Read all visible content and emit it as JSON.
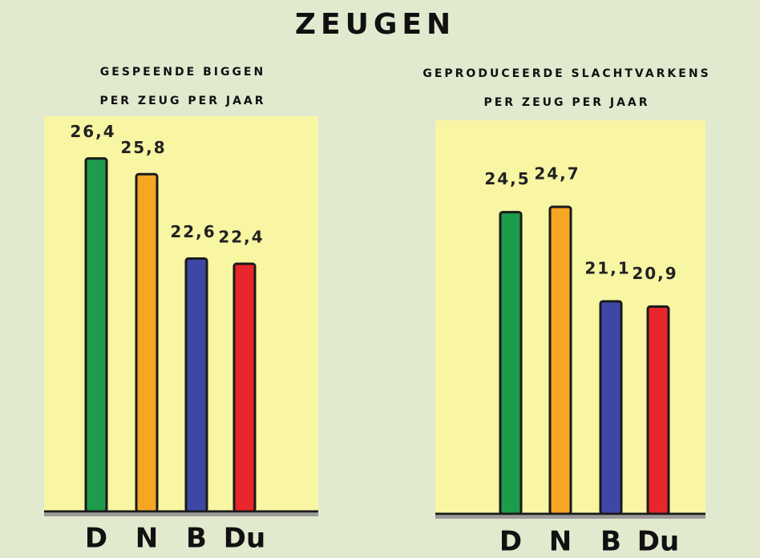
{
  "title": "ZEUGEN",
  "chart_data": [
    {
      "type": "bar",
      "title": "GESPEENDE BIGGEN",
      "subtitle": "PER ZEUG PER JAAR",
      "categories": [
        "D",
        "N",
        "B",
        "Du"
      ],
      "values": [
        26.4,
        25.8,
        22.6,
        22.4
      ],
      "value_labels": [
        "26,4",
        "25,8",
        "22,6",
        "22,4"
      ],
      "colors": [
        "#1e9b4b",
        "#f6a623",
        "#3f47a6",
        "#e8262b"
      ],
      "ylim": [
        13,
        28
      ]
    },
    {
      "type": "bar",
      "title": "GEPRODUCEERDE SLACHTVARKENS",
      "subtitle": "PER ZEUG PER JAAR",
      "categories": [
        "D",
        "N",
        "B",
        "Du"
      ],
      "values": [
        24.5,
        24.7,
        21.1,
        20.9
      ],
      "value_labels": [
        "24,5",
        "24,7",
        "21,1",
        "20,9"
      ],
      "colors": [
        "#1e9b4b",
        "#f6a623",
        "#3f47a6",
        "#e8262b"
      ],
      "ylim": [
        13,
        28
      ]
    }
  ]
}
